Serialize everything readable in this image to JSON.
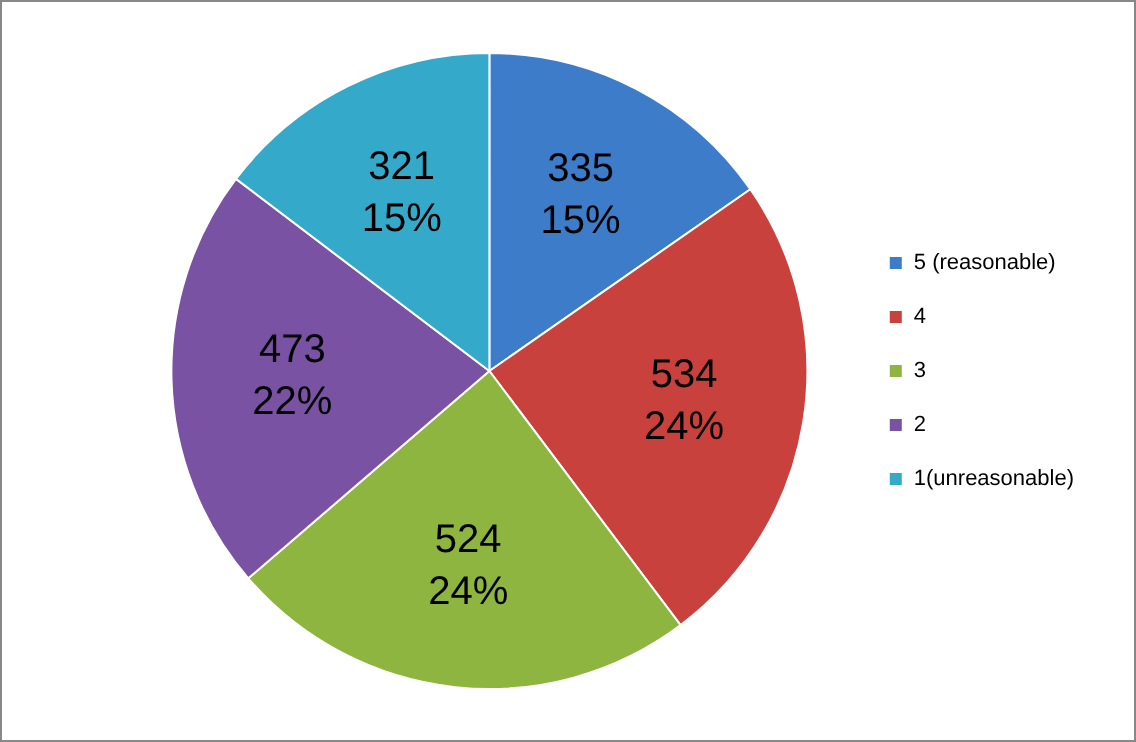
{
  "chart_data": {
    "type": "pie",
    "categories": [
      "5 (reasonable)",
      "4",
      "3",
      "2",
      "1(unreasonable)"
    ],
    "values": [
      335,
      534,
      524,
      473,
      321
    ],
    "colors": [
      "#3d7cc9",
      "#c9413d",
      "#8db53f",
      "#7a52a3",
      "#35a9c9"
    ],
    "value_labels": [
      "335\n15%",
      "534\n24%",
      "524\n24%",
      "473\n22%",
      "321\n15%"
    ],
    "legend": "right"
  }
}
